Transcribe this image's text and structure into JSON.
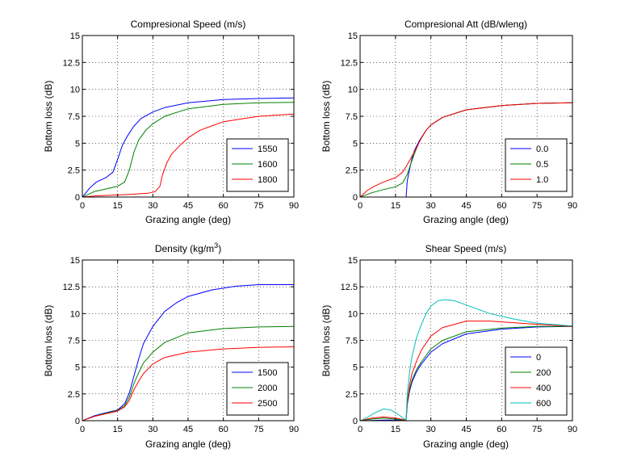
{
  "figure": {
    "background": "#ffffff"
  },
  "chart_data": [
    {
      "type": "line",
      "title": "Compresional Speed (m/s)",
      "xlabel": "Grazing angle (deg)",
      "ylabel": "Bottom loss (dB)",
      "xlim": [
        0,
        90
      ],
      "ylim": [
        0,
        15
      ],
      "xticks": [
        0,
        15,
        30,
        45,
        60,
        75,
        90
      ],
      "yticks": [
        0,
        2.5,
        5,
        7.5,
        10,
        12.5,
        15
      ],
      "xtick_labels": [
        "0",
        "15",
        "30",
        "45",
        "60",
        "75",
        "90"
      ],
      "ytick_labels": [
        "0",
        "2.5",
        "5",
        "7.5",
        "10",
        "12.5",
        "15"
      ],
      "grid": true,
      "legend_position": "bottom-right",
      "series": [
        {
          "name": "1550",
          "color": "#0000ff",
          "points": [
            [
              0,
              0
            ],
            [
              3,
              0.8
            ],
            [
              6,
              1.4
            ],
            [
              10,
              1.8
            ],
            [
              13,
              2.3
            ],
            [
              15,
              3.5
            ],
            [
              17,
              4.8
            ],
            [
              19,
              5.6
            ],
            [
              22,
              6.6
            ],
            [
              25,
              7.3
            ],
            [
              30,
              7.9
            ],
            [
              35,
              8.3
            ],
            [
              45,
              8.75
            ],
            [
              60,
              9.05
            ],
            [
              75,
              9.15
            ],
            [
              90,
              9.2
            ]
          ]
        },
        {
          "name": "1600",
          "color": "#008000",
          "points": [
            [
              0,
              0
            ],
            [
              5,
              0.5
            ],
            [
              10,
              0.75
            ],
            [
              15,
              1.0
            ],
            [
              18,
              1.4
            ],
            [
              20,
              2.5
            ],
            [
              22,
              4.2
            ],
            [
              24,
              5.3
            ],
            [
              27,
              6.2
            ],
            [
              30,
              6.8
            ],
            [
              35,
              7.5
            ],
            [
              45,
              8.2
            ],
            [
              60,
              8.6
            ],
            [
              75,
              8.75
            ],
            [
              90,
              8.8
            ]
          ]
        },
        {
          "name": "1800",
          "color": "#ff0000",
          "points": [
            [
              0,
              0
            ],
            [
              5,
              0.1
            ],
            [
              10,
              0.15
            ],
            [
              20,
              0.25
            ],
            [
              28,
              0.35
            ],
            [
              31,
              0.5
            ],
            [
              33,
              1.0
            ],
            [
              34,
              2.0
            ],
            [
              36,
              3.2
            ],
            [
              38,
              4.0
            ],
            [
              42,
              4.9
            ],
            [
              45,
              5.5
            ],
            [
              50,
              6.2
            ],
            [
              60,
              7.0
            ],
            [
              75,
              7.5
            ],
            [
              90,
              7.7
            ]
          ]
        }
      ]
    },
    {
      "type": "line",
      "title": "Compresional Att (dB/wleng)",
      "xlabel": "Grazing angle (deg)",
      "ylabel": "Bottom loss (dB)",
      "xlim": [
        0,
        90
      ],
      "ylim": [
        0,
        15
      ],
      "xticks": [
        0,
        15,
        30,
        45,
        60,
        75,
        90
      ],
      "yticks": [
        0,
        2.5,
        5,
        7.5,
        10,
        12.5,
        15
      ],
      "xtick_labels": [
        "0",
        "15",
        "30",
        "45",
        "60",
        "75",
        "90"
      ],
      "ytick_labels": [
        "0",
        "2.5",
        "5",
        "7.5",
        "10",
        "12.5",
        "15"
      ],
      "grid": true,
      "legend_position": "bottom-right",
      "series": [
        {
          "name": "0.0",
          "color": "#0000ff",
          "points": [
            [
              19.5,
              0
            ],
            [
              20,
              1.5
            ],
            [
              21,
              2.6
            ],
            [
              22,
              3.6
            ],
            [
              23,
              4.3
            ],
            [
              25,
              5.2
            ],
            [
              28,
              6.2
            ],
            [
              30,
              6.7
            ],
            [
              35,
              7.4
            ],
            [
              45,
              8.1
            ],
            [
              60,
              8.5
            ],
            [
              75,
              8.7
            ],
            [
              90,
              8.75
            ]
          ]
        },
        {
          "name": "0.5",
          "color": "#008000",
          "points": [
            [
              0,
              0
            ],
            [
              5,
              0.4
            ],
            [
              10,
              0.7
            ],
            [
              15,
              0.95
            ],
            [
              18,
              1.3
            ],
            [
              20,
              2.1
            ],
            [
              22,
              3.4
            ],
            [
              23.5,
              4.3
            ],
            [
              25,
              5.1
            ],
            [
              28,
              6.2
            ],
            [
              30,
              6.7
            ],
            [
              35,
              7.4
            ],
            [
              45,
              8.1
            ],
            [
              60,
              8.5
            ],
            [
              75,
              8.7
            ],
            [
              90,
              8.75
            ]
          ]
        },
        {
          "name": "1.0",
          "color": "#ff0000",
          "points": [
            [
              0,
              0
            ],
            [
              3,
              0.6
            ],
            [
              6,
              1.0
            ],
            [
              10,
              1.4
            ],
            [
              15,
              1.8
            ],
            [
              18,
              2.3
            ],
            [
              20,
              3.0
            ],
            [
              22,
              3.8
            ],
            [
              24,
              4.6
            ],
            [
              26,
              5.5
            ],
            [
              28,
              6.2
            ],
            [
              30,
              6.7
            ],
            [
              35,
              7.4
            ],
            [
              45,
              8.1
            ],
            [
              60,
              8.5
            ],
            [
              75,
              8.7
            ],
            [
              90,
              8.75
            ]
          ]
        }
      ]
    },
    {
      "type": "line",
      "title": "Density (kg/m",
      "title_sup": "3",
      "title_suffix": ")",
      "xlabel": "Grazing angle (deg)",
      "ylabel": "Bottom loss (dB)",
      "xlim": [
        0,
        90
      ],
      "ylim": [
        0,
        15
      ],
      "xticks": [
        0,
        15,
        30,
        45,
        60,
        75,
        90
      ],
      "yticks": [
        0,
        2.5,
        5,
        7.5,
        10,
        12.5,
        15
      ],
      "xtick_labels": [
        "0",
        "15",
        "30",
        "45",
        "60",
        "75",
        "90"
      ],
      "ytick_labels": [
        "0",
        "2.5",
        "5",
        "7.5",
        "10",
        "12.5",
        "15"
      ],
      "grid": true,
      "legend_position": "bottom-right",
      "series": [
        {
          "name": "1500",
          "color": "#0000ff",
          "points": [
            [
              0,
              0
            ],
            [
              5,
              0.45
            ],
            [
              10,
              0.75
            ],
            [
              15,
              1.0
            ],
            [
              18,
              1.6
            ],
            [
              20,
              2.6
            ],
            [
              22,
              4.2
            ],
            [
              24,
              5.8
            ],
            [
              26,
              7.2
            ],
            [
              30,
              8.8
            ],
            [
              35,
              10.2
            ],
            [
              40,
              11.0
            ],
            [
              45,
              11.6
            ],
            [
              55,
              12.2
            ],
            [
              65,
              12.55
            ],
            [
              75,
              12.7
            ],
            [
              90,
              12.7
            ]
          ]
        },
        {
          "name": "2000",
          "color": "#008000",
          "points": [
            [
              0,
              0
            ],
            [
              5,
              0.4
            ],
            [
              10,
              0.7
            ],
            [
              15,
              0.95
            ],
            [
              18,
              1.4
            ],
            [
              20,
              2.2
            ],
            [
              22,
              3.5
            ],
            [
              24,
              4.5
            ],
            [
              26,
              5.4
            ],
            [
              30,
              6.4
            ],
            [
              35,
              7.3
            ],
            [
              45,
              8.2
            ],
            [
              60,
              8.6
            ],
            [
              75,
              8.75
            ],
            [
              90,
              8.8
            ]
          ]
        },
        {
          "name": "2500",
          "color": "#ff0000",
          "points": [
            [
              0,
              0
            ],
            [
              5,
              0.4
            ],
            [
              10,
              0.65
            ],
            [
              15,
              0.9
            ],
            [
              18,
              1.3
            ],
            [
              20,
              1.9
            ],
            [
              22,
              2.9
            ],
            [
              24,
              3.7
            ],
            [
              26,
              4.4
            ],
            [
              30,
              5.3
            ],
            [
              35,
              5.9
            ],
            [
              45,
              6.4
            ],
            [
              60,
              6.7
            ],
            [
              75,
              6.85
            ],
            [
              90,
              6.9
            ]
          ]
        }
      ]
    },
    {
      "type": "line",
      "title": "Shear Speed (m/s)",
      "xlabel": "Grazing angle (deg)",
      "ylabel": "Bottom loss (dB)",
      "xlim": [
        0,
        90
      ],
      "ylim": [
        0,
        15
      ],
      "xticks": [
        0,
        15,
        30,
        45,
        60,
        75,
        90
      ],
      "yticks": [
        0,
        2.5,
        5,
        7.5,
        10,
        12.5,
        15
      ],
      "xtick_labels": [
        "0",
        "15",
        "30",
        "45",
        "60",
        "75",
        "90"
      ],
      "ytick_labels": [
        "0",
        "2.5",
        "5",
        "7.5",
        "10",
        "12.5",
        "15"
      ],
      "grid": true,
      "legend_position": "bottom-right",
      "series": [
        {
          "name": "0",
          "color": "#0000ff",
          "points": [
            [
              0,
              0
            ],
            [
              5,
              0.02
            ],
            [
              10,
              0.05
            ],
            [
              15,
              0.05
            ],
            [
              19.5,
              0.03
            ],
            [
              20,
              1.5
            ],
            [
              21,
              2.8
            ],
            [
              22,
              3.6
            ],
            [
              24,
              4.6
            ],
            [
              26,
              5.3
            ],
            [
              30,
              6.4
            ],
            [
              35,
              7.2
            ],
            [
              45,
              8.1
            ],
            [
              60,
              8.55
            ],
            [
              75,
              8.75
            ],
            [
              90,
              8.8
            ]
          ]
        },
        {
          "name": "200",
          "color": "#008000",
          "points": [
            [
              0,
              0
            ],
            [
              5,
              0.15
            ],
            [
              10,
              0.25
            ],
            [
              15,
              0.15
            ],
            [
              19.5,
              0.03
            ],
            [
              20,
              1.6
            ],
            [
              21,
              3.0
            ],
            [
              22,
              3.8
            ],
            [
              24,
              4.8
            ],
            [
              26,
              5.5
            ],
            [
              30,
              6.7
            ],
            [
              35,
              7.5
            ],
            [
              45,
              8.3
            ],
            [
              60,
              8.65
            ],
            [
              75,
              8.8
            ],
            [
              90,
              8.8
            ]
          ]
        },
        {
          "name": "400",
          "color": "#ff0000",
          "points": [
            [
              0,
              0
            ],
            [
              5,
              0.25
            ],
            [
              10,
              0.35
            ],
            [
              15,
              0.25
            ],
            [
              19.5,
              0.05
            ],
            [
              20,
              1.8
            ],
            [
              21,
              3.4
            ],
            [
              22,
              4.4
            ],
            [
              24,
              5.6
            ],
            [
              26,
              6.6
            ],
            [
              30,
              7.9
            ],
            [
              35,
              8.7
            ],
            [
              45,
              9.3
            ],
            [
              55,
              9.3
            ],
            [
              65,
              9.15
            ],
            [
              75,
              9.0
            ],
            [
              90,
              8.8
            ]
          ]
        },
        {
          "name": "600",
          "color": "#00bfbf",
          "points": [
            [
              0,
              0
            ],
            [
              3,
              0.3
            ],
            [
              6,
              0.7
            ],
            [
              10,
              1.1
            ],
            [
              13,
              1.0
            ],
            [
              16,
              0.6
            ],
            [
              19.5,
              0.05
            ],
            [
              20,
              2.5
            ],
            [
              21,
              4.6
            ],
            [
              22,
              6.0
            ],
            [
              24,
              7.8
            ],
            [
              26,
              9.0
            ],
            [
              28,
              10.0
            ],
            [
              30,
              10.7
            ],
            [
              33,
              11.2
            ],
            [
              36,
              11.3
            ],
            [
              40,
              11.2
            ],
            [
              45,
              10.8
            ],
            [
              55,
              10.0
            ],
            [
              65,
              9.5
            ],
            [
              75,
              9.1
            ],
            [
              90,
              8.85
            ]
          ]
        }
      ]
    }
  ]
}
